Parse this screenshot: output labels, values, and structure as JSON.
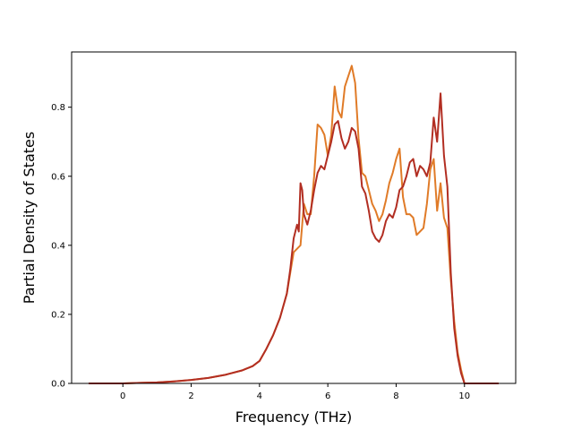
{
  "chart_data": {
    "type": "line",
    "title": "",
    "xlabel": "Frequency (THz)",
    "ylabel": "Partial Density of States",
    "xlim": [
      -1.5,
      11.5
    ],
    "ylim": [
      0,
      0.96
    ],
    "xticks": [
      0,
      2,
      4,
      6,
      8,
      10
    ],
    "yticks": [
      0.0,
      0.2,
      0.4,
      0.6,
      0.8
    ],
    "xtick_labels": [
      "0",
      "2",
      "4",
      "6",
      "8",
      "10"
    ],
    "ytick_labels": [
      "0.0",
      "0.2",
      "0.4",
      "0.6",
      "0.8"
    ],
    "grid": false,
    "legend": "none",
    "series": [
      {
        "color": "#e07b28",
        "x": [
          -1.0,
          0.0,
          0.5,
          1.0,
          1.5,
          2.0,
          2.5,
          3.0,
          3.5,
          3.8,
          4.0,
          4.2,
          4.4,
          4.6,
          4.8,
          4.9,
          5.0,
          5.1,
          5.2,
          5.3,
          5.4,
          5.5,
          5.6,
          5.7,
          5.8,
          5.9,
          6.0,
          6.1,
          6.2,
          6.3,
          6.4,
          6.5,
          6.6,
          6.7,
          6.8,
          6.9,
          7.0,
          7.1,
          7.2,
          7.3,
          7.4,
          7.5,
          7.6,
          7.7,
          7.8,
          7.9,
          8.0,
          8.1,
          8.2,
          8.3,
          8.4,
          8.5,
          8.6,
          8.7,
          8.8,
          8.9,
          9.0,
          9.1,
          9.2,
          9.3,
          9.4,
          9.5,
          9.6,
          9.7,
          9.8,
          9.9,
          10.0,
          10.2,
          11.0
        ],
        "y": [
          0.0,
          0.0,
          0.0015,
          0.003,
          0.006,
          0.01,
          0.016,
          0.025,
          0.038,
          0.05,
          0.065,
          0.1,
          0.14,
          0.19,
          0.26,
          0.32,
          0.38,
          0.39,
          0.4,
          0.52,
          0.49,
          0.49,
          0.6,
          0.75,
          0.74,
          0.72,
          0.66,
          0.72,
          0.86,
          0.79,
          0.77,
          0.86,
          0.89,
          0.92,
          0.87,
          0.71,
          0.61,
          0.6,
          0.56,
          0.52,
          0.5,
          0.47,
          0.49,
          0.53,
          0.58,
          0.61,
          0.65,
          0.68,
          0.54,
          0.49,
          0.49,
          0.48,
          0.43,
          0.44,
          0.45,
          0.52,
          0.62,
          0.65,
          0.5,
          0.58,
          0.48,
          0.45,
          0.3,
          0.18,
          0.09,
          0.04,
          0.0,
          0.0,
          0.0
        ]
      },
      {
        "color": "#b22e22",
        "x": [
          -1.0,
          0.0,
          0.5,
          1.0,
          1.5,
          2.0,
          2.5,
          3.0,
          3.5,
          3.8,
          4.0,
          4.2,
          4.4,
          4.6,
          4.8,
          4.9,
          5.0,
          5.1,
          5.15,
          5.2,
          5.25,
          5.3,
          5.4,
          5.5,
          5.6,
          5.7,
          5.8,
          5.9,
          6.0,
          6.1,
          6.2,
          6.3,
          6.4,
          6.5,
          6.6,
          6.7,
          6.8,
          6.9,
          7.0,
          7.1,
          7.2,
          7.3,
          7.4,
          7.5,
          7.6,
          7.7,
          7.8,
          7.9,
          8.0,
          8.1,
          8.2,
          8.3,
          8.4,
          8.5,
          8.6,
          8.7,
          8.8,
          8.9,
          9.0,
          9.1,
          9.2,
          9.3,
          9.4,
          9.5,
          9.6,
          9.7,
          9.8,
          9.9,
          10.0,
          10.2,
          11.0
        ],
        "y": [
          0.0,
          0.0,
          0.0015,
          0.003,
          0.006,
          0.01,
          0.016,
          0.025,
          0.038,
          0.05,
          0.065,
          0.1,
          0.14,
          0.19,
          0.26,
          0.33,
          0.42,
          0.46,
          0.44,
          0.58,
          0.56,
          0.49,
          0.46,
          0.5,
          0.56,
          0.61,
          0.63,
          0.62,
          0.66,
          0.7,
          0.75,
          0.76,
          0.71,
          0.68,
          0.7,
          0.74,
          0.73,
          0.68,
          0.57,
          0.55,
          0.5,
          0.44,
          0.42,
          0.41,
          0.43,
          0.47,
          0.49,
          0.48,
          0.51,
          0.56,
          0.57,
          0.6,
          0.64,
          0.65,
          0.6,
          0.63,
          0.62,
          0.6,
          0.64,
          0.77,
          0.7,
          0.84,
          0.66,
          0.57,
          0.32,
          0.16,
          0.08,
          0.03,
          0.0,
          0.0,
          0.0
        ]
      }
    ]
  }
}
